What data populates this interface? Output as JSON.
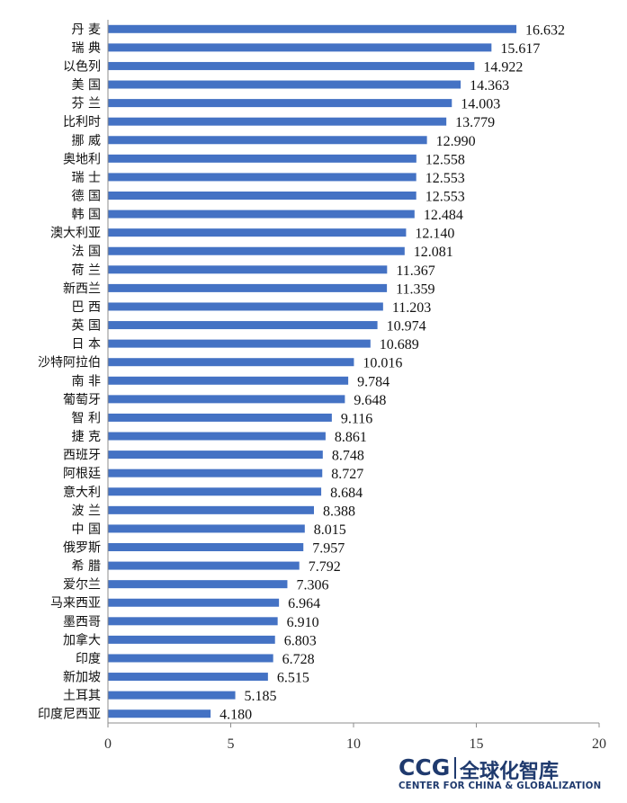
{
  "chart_data": {
    "type": "bar",
    "orientation": "horizontal",
    "categories": [
      "丹 麦",
      "瑞 典",
      "以色列",
      "美 国",
      "芬 兰",
      "比利时",
      "挪 威",
      "奥地利",
      "瑞 士",
      "德 国",
      "韩 国",
      "澳大利亚",
      "法 国",
      "荷 兰",
      "新西兰",
      "巴 西",
      "英 国",
      "日 本",
      "沙特阿拉伯",
      "南 非",
      "葡萄牙",
      "智 利",
      "捷 克",
      "西班牙",
      "阿根廷",
      "意大利",
      "波 兰",
      "中 国",
      "俄罗斯",
      "希 腊",
      "爱尔兰",
      "马来西亚",
      "墨西哥",
      "加拿大",
      "印度",
      "新加坡",
      "土耳其",
      "印度尼西亚"
    ],
    "values": [
      16.632,
      15.617,
      14.922,
      14.363,
      14.003,
      13.779,
      12.99,
      12.558,
      12.553,
      12.553,
      12.484,
      12.14,
      12.081,
      11.367,
      11.359,
      11.203,
      10.974,
      10.689,
      10.016,
      9.784,
      9.648,
      9.116,
      8.861,
      8.748,
      8.727,
      8.684,
      8.388,
      8.015,
      7.957,
      7.792,
      7.306,
      6.964,
      6.91,
      6.803,
      6.728,
      6.515,
      5.185,
      4.18
    ],
    "value_labels": [
      "16.632",
      "15.617",
      "14.922",
      "14.363",
      "14.003",
      "13.779",
      "12.990",
      "12.558",
      "12.553",
      "12.553",
      "12.484",
      "12.140",
      "12.081",
      "11.367",
      "11.359",
      "11.203",
      "10.974",
      "10.689",
      "10.016",
      "9.784",
      "9.648",
      "9.116",
      "8.861",
      "8.748",
      "8.727",
      "8.684",
      "8.388",
      "8.015",
      "7.957",
      "7.792",
      "7.306",
      "6.964",
      "6.910",
      "6.803",
      "6.728",
      "6.515",
      "5.185",
      "4.180"
    ],
    "xlim": [
      0,
      20
    ],
    "xticks": [
      "0",
      "5",
      "10",
      "15",
      "20"
    ],
    "xtick_values": [
      0,
      5,
      10,
      15,
      20
    ],
    "grid": false,
    "legend": "none",
    "bar_color": "#4472C4"
  },
  "logo": {
    "ccg": "CCG",
    "cn": "全球化智库",
    "en": "CENTER FOR CHINA & GLOBALIZATION"
  }
}
